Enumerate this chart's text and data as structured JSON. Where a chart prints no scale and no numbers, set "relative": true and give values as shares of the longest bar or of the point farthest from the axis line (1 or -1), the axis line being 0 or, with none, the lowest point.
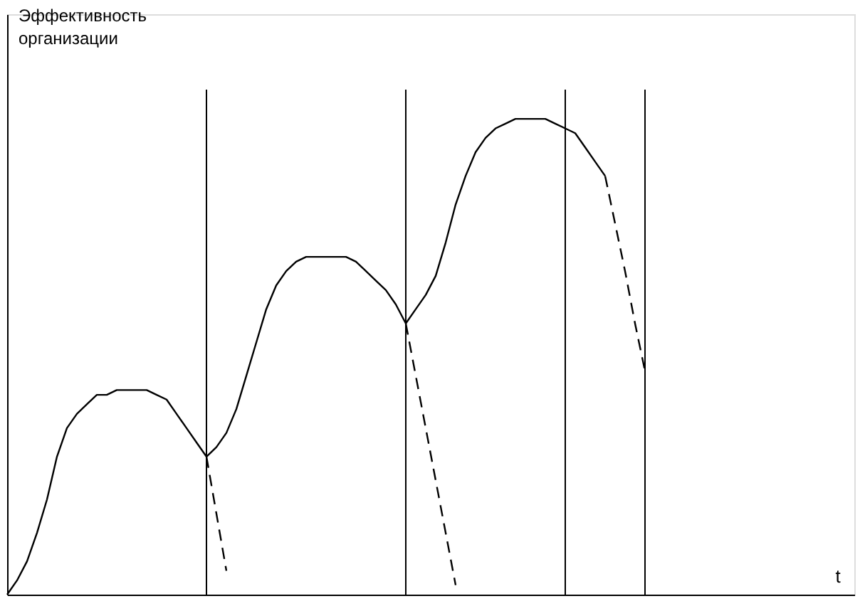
{
  "chart_data": {
    "type": "line",
    "relative": true,
    "xlabel": "t",
    "ylabel": "Эффективность организации",
    "categories": [
      null,
      null,
      null,
      null,
      null,
      null,
      null,
      null,
      null,
      null,
      null,
      null,
      null,
      null,
      null,
      null,
      null,
      null,
      null,
      null,
      null,
      null,
      null,
      null,
      null,
      null,
      null,
      null,
      null,
      null,
      null,
      null,
      null,
      null,
      null,
      null,
      null,
      null,
      null,
      null,
      null,
      null,
      null,
      null,
      null,
      null,
      null,
      null,
      null,
      null,
      null,
      null,
      null,
      null,
      null,
      null,
      null,
      null,
      null,
      null,
      null,
      null,
      null,
      null,
      null,
      null,
      null,
      null,
      null,
      null,
      null,
      null,
      null,
      null,
      null,
      null,
      null,
      null,
      null,
      null,
      null,
      null,
      null,
      null,
      null,
      null
    ],
    "series": [
      {
        "color": "#000000",
        "line_style": "solid",
        "values": [
          0,
          0.03,
          0.07,
          0.13,
          0.2,
          0.29,
          0.35,
          0.38,
          0.4,
          0.42,
          0.42,
          0.43,
          0.43,
          0.43,
          0.43,
          0.42,
          0.41,
          0.38,
          0.35,
          0.32,
          0.29,
          0.31,
          0.34,
          0.39,
          0.46,
          0.53,
          0.6,
          0.65,
          0.68,
          0.7,
          0.71,
          0.71,
          0.71,
          0.71,
          0.71,
          0.7,
          0.68,
          0.66,
          0.64,
          0.61,
          0.57,
          0.6,
          0.63,
          0.67,
          0.74,
          0.82,
          0.88,
          0.93,
          0.96,
          0.98,
          0.99,
          1.0,
          1.0,
          1.0,
          1.0,
          0.99,
          0.98,
          0.97,
          0.94,
          0.91,
          0.88,
          null,
          null,
          null,
          null,
          null,
          null,
          null,
          null,
          null,
          null,
          null,
          null,
          null,
          null,
          null,
          null,
          null,
          null,
          null,
          null,
          null,
          null,
          null,
          null,
          null
        ]
      },
      {
        "color": "#000000",
        "line_style": "dashed",
        "values": [
          null,
          null,
          null,
          null,
          null,
          null,
          null,
          null,
          null,
          null,
          null,
          null,
          null,
          null,
          null,
          null,
          null,
          null,
          null,
          null,
          0.29,
          0.17,
          0.05,
          null,
          null,
          null,
          null,
          null,
          null,
          null,
          null,
          null,
          null,
          null,
          null,
          null,
          null,
          null,
          null,
          null,
          null,
          null,
          null,
          null,
          null,
          null,
          null,
          null,
          null,
          null,
          null,
          null,
          null,
          null,
          null,
          null,
          null,
          null,
          null,
          null,
          null,
          null,
          null,
          null,
          null,
          null,
          null,
          null,
          null,
          null,
          null,
          null,
          null,
          null,
          null,
          null,
          null,
          null,
          null,
          null,
          null,
          null,
          null,
          null,
          null,
          null
        ]
      },
      {
        "color": "#000000",
        "line_style": "dashed",
        "values": [
          null,
          null,
          null,
          null,
          null,
          null,
          null,
          null,
          null,
          null,
          null,
          null,
          null,
          null,
          null,
          null,
          null,
          null,
          null,
          null,
          null,
          null,
          null,
          null,
          null,
          null,
          null,
          null,
          null,
          null,
          null,
          null,
          null,
          null,
          null,
          null,
          null,
          null,
          null,
          null,
          0.57,
          0.46,
          0.35,
          0.24,
          0.13,
          0.02,
          null,
          null,
          null,
          null,
          null,
          null,
          null,
          null,
          null,
          null,
          null,
          null,
          null,
          null,
          null,
          null,
          null,
          null,
          null,
          null,
          null,
          null,
          null,
          null,
          null,
          null,
          null,
          null,
          null,
          null,
          null,
          null,
          null,
          null,
          null,
          null,
          null,
          null,
          null,
          null
        ]
      },
      {
        "color": "#000000",
        "line_style": "dashed",
        "values": [
          null,
          null,
          null,
          null,
          null,
          null,
          null,
          null,
          null,
          null,
          null,
          null,
          null,
          null,
          null,
          null,
          null,
          null,
          null,
          null,
          null,
          null,
          null,
          null,
          null,
          null,
          null,
          null,
          null,
          null,
          null,
          null,
          null,
          null,
          null,
          null,
          null,
          null,
          null,
          null,
          null,
          null,
          null,
          null,
          null,
          null,
          null,
          null,
          null,
          null,
          null,
          null,
          null,
          null,
          null,
          null,
          null,
          null,
          null,
          null,
          0.88,
          0.78,
          0.68,
          0.57,
          0.47,
          null,
          null,
          null,
          null,
          null,
          null,
          null,
          null,
          null,
          null,
          null,
          null,
          null,
          null,
          null,
          null,
          null,
          null,
          null,
          null,
          null
        ]
      }
    ],
    "grid": "x"
  }
}
